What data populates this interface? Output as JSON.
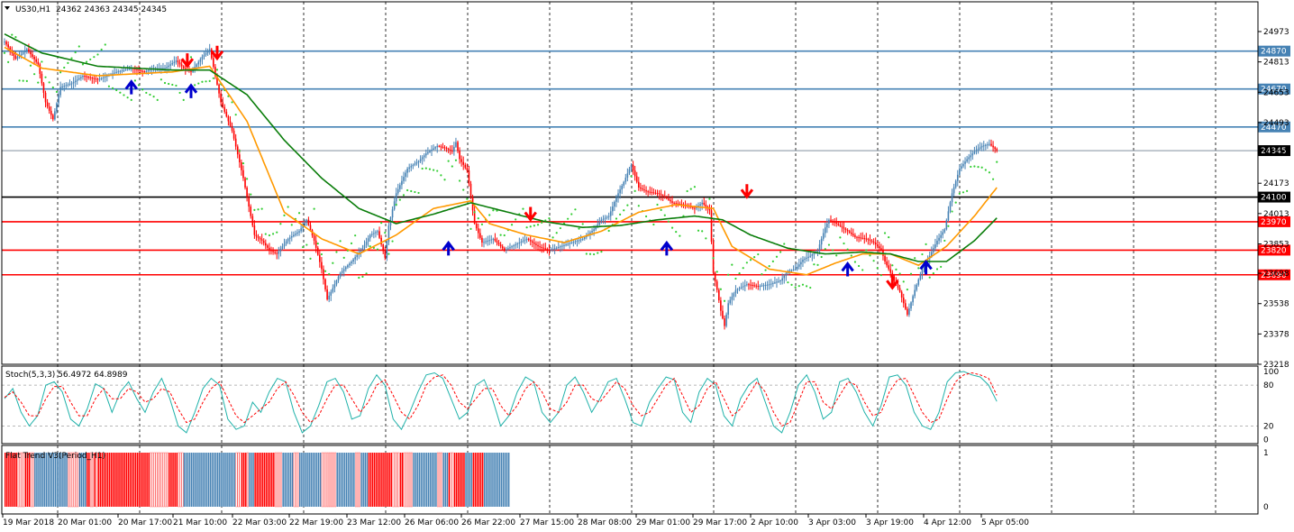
{
  "chart_data": {
    "type": "candlestick",
    "header": {
      "symbol": "US30,H1",
      "ohlc": "24362 24363 24345 24345",
      "menu_icon": "triangle-down-icon"
    },
    "y_range": [
      23218,
      25130
    ],
    "y_ticks": [
      24973,
      24813,
      24653,
      24493,
      24333,
      24173,
      24013,
      23853,
      23698,
      23538,
      23378,
      23218
    ],
    "x_ticks": [
      "19 Mar 2018",
      "20 Mar 01:00",
      "20 Mar 17:00",
      "21 Mar 10:00",
      "22 Mar 03:00",
      "22 Mar 19:00",
      "23 Mar 12:00",
      "26 Mar 06:00",
      "26 Mar 22:00",
      "27 Mar 15:00",
      "28 Mar 08:00",
      "29 Mar 01:00",
      "29 Mar 17:00",
      "2 Apr 10:00",
      "3 Apr 03:00",
      "3 Apr 19:00",
      "4 Apr 12:00",
      "5 Apr 05:00"
    ],
    "current_price": {
      "value": 24345,
      "label": "24345"
    },
    "levels": [
      {
        "value": 24870,
        "label": "24870",
        "color": "#4682b4"
      },
      {
        "value": 24670,
        "label": "24670",
        "color": "#4682b4"
      },
      {
        "value": 24470,
        "label": "24470",
        "color": "#4682b4"
      },
      {
        "value": 24100,
        "label": "24100",
        "color": "#000000"
      },
      {
        "value": 23970,
        "label": "23970",
        "color": "#ff0000"
      },
      {
        "value": 23820,
        "label": "23820",
        "color": "#ff0000"
      },
      {
        "value": 23690,
        "label": "23690",
        "color": "#ff0000"
      }
    ],
    "price_path": {
      "points": [
        [
          0,
          24920
        ],
        [
          6,
          24830
        ],
        [
          12,
          24880
        ],
        [
          18,
          24800
        ],
        [
          22,
          24600
        ],
        [
          26,
          24510
        ],
        [
          30,
          24680
        ],
        [
          36,
          24700
        ],
        [
          42,
          24740
        ],
        [
          50,
          24720
        ],
        [
          60,
          24760
        ],
        [
          68,
          24780
        ],
        [
          75,
          24760
        ],
        [
          80,
          24780
        ],
        [
          86,
          24780
        ],
        [
          92,
          24820
        ],
        [
          96,
          24780
        ],
        [
          100,
          24760
        ],
        [
          106,
          24840
        ],
        [
          110,
          24880
        ],
        [
          116,
          24600
        ],
        [
          122,
          24450
        ],
        [
          128,
          24200
        ],
        [
          132,
          24000
        ],
        [
          134,
          23900
        ],
        [
          138,
          23870
        ],
        [
          142,
          23820
        ],
        [
          146,
          23800
        ],
        [
          152,
          23880
        ],
        [
          158,
          23920
        ],
        [
          162,
          23980
        ],
        [
          166,
          23870
        ],
        [
          170,
          23720
        ],
        [
          173,
          23560
        ],
        [
          176,
          23620
        ],
        [
          180,
          23700
        ],
        [
          186,
          23760
        ],
        [
          192,
          23830
        ],
        [
          196,
          23900
        ],
        [
          200,
          23920
        ],
        [
          204,
          23780
        ],
        [
          206,
          23950
        ],
        [
          210,
          24120
        ],
        [
          216,
          24250
        ],
        [
          222,
          24290
        ],
        [
          226,
          24330
        ],
        [
          232,
          24370
        ],
        [
          236,
          24360
        ],
        [
          240,
          24340
        ],
        [
          242,
          24390
        ],
        [
          244,
          24300
        ],
        [
          248,
          24240
        ],
        [
          252,
          23960
        ],
        [
          256,
          23860
        ],
        [
          262,
          23880
        ],
        [
          268,
          23820
        ],
        [
          274,
          23850
        ],
        [
          280,
          23880
        ],
        [
          286,
          23840
        ],
        [
          292,
          23820
        ],
        [
          298,
          23840
        ],
        [
          304,
          23860
        ],
        [
          310,
          23880
        ],
        [
          316,
          23930
        ],
        [
          320,
          23980
        ],
        [
          324,
          24000
        ],
        [
          328,
          24100
        ],
        [
          332,
          24180
        ],
        [
          336,
          24270
        ],
        [
          340,
          24150
        ],
        [
          344,
          24130
        ],
        [
          350,
          24120
        ],
        [
          354,
          24100
        ],
        [
          358,
          24070
        ],
        [
          364,
          24060
        ],
        [
          370,
          24040
        ],
        [
          374,
          24070
        ],
        [
          378,
          24030
        ],
        [
          380,
          23700
        ],
        [
          382,
          23610
        ],
        [
          384,
          23500
        ],
        [
          386,
          23420
        ],
        [
          388,
          23540
        ],
        [
          392,
          23610
        ],
        [
          398,
          23640
        ],
        [
          404,
          23630
        ],
        [
          410,
          23640
        ],
        [
          416,
          23660
        ],
        [
          420,
          23710
        ],
        [
          424,
          23720
        ],
        [
          428,
          23770
        ],
        [
          432,
          23790
        ],
        [
          436,
          23820
        ],
        [
          440,
          23940
        ],
        [
          442,
          23980
        ],
        [
          446,
          23960
        ],
        [
          452,
          23920
        ],
        [
          456,
          23890
        ],
        [
          462,
          23880
        ],
        [
          466,
          23860
        ],
        [
          470,
          23820
        ],
        [
          472,
          23760
        ],
        [
          476,
          23680
        ],
        [
          480,
          23600
        ],
        [
          484,
          23480
        ],
        [
          488,
          23610
        ],
        [
          492,
          23720
        ],
        [
          496,
          23790
        ],
        [
          500,
          23870
        ],
        [
          504,
          23930
        ],
        [
          508,
          24120
        ],
        [
          512,
          24250
        ],
        [
          516,
          24300
        ],
        [
          520,
          24340
        ],
        [
          524,
          24370
        ],
        [
          528,
          24380
        ],
        [
          532,
          24345
        ]
      ]
    },
    "moving_averages": [
      {
        "color": "#ff9900",
        "points": [
          [
            0,
            24890
          ],
          [
            20,
            24780
          ],
          [
            50,
            24740
          ],
          [
            90,
            24760
          ],
          [
            110,
            24790
          ],
          [
            130,
            24500
          ],
          [
            150,
            24020
          ],
          [
            170,
            23880
          ],
          [
            190,
            23800
          ],
          [
            210,
            23900
          ],
          [
            230,
            24040
          ],
          [
            250,
            24080
          ],
          [
            260,
            23960
          ],
          [
            280,
            23900
          ],
          [
            300,
            23860
          ],
          [
            320,
            23920
          ],
          [
            340,
            24020
          ],
          [
            360,
            24060
          ],
          [
            380,
            24040
          ],
          [
            390,
            23840
          ],
          [
            410,
            23720
          ],
          [
            430,
            23690
          ],
          [
            445,
            23750
          ],
          [
            460,
            23800
          ],
          [
            475,
            23800
          ],
          [
            490,
            23740
          ],
          [
            505,
            23840
          ],
          [
            520,
            24000
          ],
          [
            532,
            24150
          ]
        ]
      },
      {
        "color": "#0a7d0a",
        "points": [
          [
            0,
            24960
          ],
          [
            20,
            24860
          ],
          [
            50,
            24790
          ],
          [
            90,
            24770
          ],
          [
            110,
            24770
          ],
          [
            130,
            24640
          ],
          [
            150,
            24400
          ],
          [
            170,
            24200
          ],
          [
            190,
            24040
          ],
          [
            210,
            23960
          ],
          [
            230,
            24010
          ],
          [
            250,
            24070
          ],
          [
            270,
            24020
          ],
          [
            290,
            23970
          ],
          [
            310,
            23940
          ],
          [
            330,
            23950
          ],
          [
            350,
            23980
          ],
          [
            370,
            24000
          ],
          [
            385,
            23980
          ],
          [
            400,
            23900
          ],
          [
            420,
            23830
          ],
          [
            440,
            23800
          ],
          [
            460,
            23810
          ],
          [
            475,
            23800
          ],
          [
            490,
            23760
          ],
          [
            505,
            23760
          ],
          [
            520,
            23870
          ],
          [
            532,
            23990
          ]
        ]
      }
    ],
    "signals": [
      {
        "x": 68,
        "value": 24680,
        "dir": "up"
      },
      {
        "x": 100,
        "value": 24660,
        "dir": "up"
      },
      {
        "x": 98,
        "value": 24820,
        "dir": "down"
      },
      {
        "x": 114,
        "value": 24860,
        "dir": "down"
      },
      {
        "x": 238,
        "value": 23830,
        "dir": "up"
      },
      {
        "x": 282,
        "value": 24010,
        "dir": "down"
      },
      {
        "x": 355,
        "value": 23830,
        "dir": "up"
      },
      {
        "x": 398,
        "value": 24130,
        "dir": "down"
      },
      {
        "x": 452,
        "value": 23720,
        "dir": "up"
      },
      {
        "x": 476,
        "value": 23650,
        "dir": "down"
      },
      {
        "x": 494,
        "value": 23730,
        "dir": "up"
      }
    ],
    "stochastic": {
      "label": "Stoch(5,3,3) 56.4972 64.8989",
      "k_color": "#20b2aa",
      "d_color": "#ff0000",
      "y_range": [
        -6,
        108
      ],
      "levels": [
        80,
        20
      ],
      "ticks": [
        "100",
        "80",
        "20",
        "0"
      ],
      "k_values": [
        60,
        75,
        40,
        20,
        35,
        80,
        85,
        70,
        30,
        20,
        45,
        82,
        75,
        40,
        70,
        85,
        60,
        40,
        70,
        90,
        60,
        20,
        10,
        40,
        75,
        90,
        80,
        30,
        15,
        20,
        55,
        40,
        70,
        90,
        85,
        40,
        10,
        20,
        50,
        85,
        90,
        70,
        30,
        35,
        75,
        95,
        80,
        30,
        15,
        40,
        70,
        95,
        98,
        90,
        60,
        30,
        40,
        80,
        88,
        60,
        20,
        35,
        70,
        92,
        85,
        40,
        25,
        40,
        80,
        92,
        70,
        40,
        60,
        85,
        90,
        60,
        25,
        20,
        55,
        75,
        92,
        88,
        40,
        25,
        70,
        90,
        80,
        35,
        20,
        60,
        80,
        90,
        55,
        20,
        10,
        40,
        80,
        95,
        70,
        30,
        40,
        85,
        90,
        70,
        40,
        20,
        50,
        92,
        95,
        80,
        40,
        20,
        15,
        40,
        85,
        98,
        100,
        95,
        92,
        80,
        56
      ],
      "d_values": [
        62,
        70,
        55,
        35,
        35,
        60,
        78,
        78,
        55,
        35,
        35,
        60,
        75,
        60,
        60,
        75,
        70,
        55,
        60,
        75,
        70,
        45,
        25,
        30,
        55,
        75,
        85,
        60,
        35,
        25,
        35,
        45,
        55,
        75,
        85,
        65,
        40,
        25,
        35,
        60,
        80,
        80,
        60,
        40,
        55,
        80,
        88,
        65,
        40,
        30,
        50,
        80,
        92,
        95,
        80,
        55,
        45,
        60,
        75,
        75,
        50,
        35,
        50,
        75,
        85,
        70,
        45,
        40,
        55,
        80,
        80,
        60,
        55,
        70,
        85,
        75,
        50,
        35,
        40,
        60,
        80,
        90,
        65,
        40,
        50,
        75,
        85,
        60,
        35,
        45,
        65,
        85,
        70,
        40,
        20,
        25,
        55,
        85,
        85,
        55,
        45,
        65,
        85,
        80,
        55,
        35,
        40,
        70,
        88,
        90,
        65,
        40,
        25,
        30,
        60,
        85,
        95,
        98,
        95,
        90,
        65
      ]
    },
    "flat_trend": {
      "label": "Flat Trend V3(Period_H1)",
      "ticks": [
        "1",
        "0"
      ],
      "legend": {
        "-1": "#ff0000",
        "0": "#ffffff",
        "1": "#4682b4"
      },
      "segments": [
        {
          "state": -1,
          "count": 7
        },
        {
          "state": 0,
          "count": 4
        },
        {
          "state": -1,
          "count": 3
        },
        {
          "state": 0,
          "count": 2
        },
        {
          "state": 1,
          "count": 18
        },
        {
          "state": 0,
          "count": 6
        },
        {
          "state": 1,
          "count": 4
        },
        {
          "state": -1,
          "count": 2
        },
        {
          "state": 0,
          "count": 2
        },
        {
          "state": -1,
          "count": 1
        },
        {
          "state": 0,
          "count": 1
        },
        {
          "state": -1,
          "count": 28
        },
        {
          "state": 0,
          "count": 10
        },
        {
          "state": -1,
          "count": 5
        },
        {
          "state": 0,
          "count": 3
        },
        {
          "state": 1,
          "count": 28
        },
        {
          "state": 0,
          "count": 3
        },
        {
          "state": -1,
          "count": 3
        },
        {
          "state": 0,
          "count": 1
        },
        {
          "state": 1,
          "count": 3
        },
        {
          "state": -1,
          "count": 11
        },
        {
          "state": 0,
          "count": 4
        },
        {
          "state": 1,
          "count": 6
        },
        {
          "state": 0,
          "count": 3
        },
        {
          "state": 1,
          "count": 12
        },
        {
          "state": 0,
          "count": 8
        },
        {
          "state": 1,
          "count": 10
        },
        {
          "state": 0,
          "count": 3
        },
        {
          "state": 1,
          "count": 4
        },
        {
          "state": -1,
          "count": 13
        },
        {
          "state": 0,
          "count": 4
        },
        {
          "state": -1,
          "count": 2
        },
        {
          "state": 0,
          "count": 5
        },
        {
          "state": 1,
          "count": 13
        },
        {
          "state": 0,
          "count": 3
        },
        {
          "state": 1,
          "count": 3
        },
        {
          "state": -1,
          "count": 1
        },
        {
          "state": 0,
          "count": 2
        },
        {
          "state": -1,
          "count": 6
        },
        {
          "state": 1,
          "count": 4
        },
        {
          "state": -1,
          "count": 6
        },
        {
          "state": 1,
          "count": 14
        }
      ]
    },
    "colors": {
      "bull_candle": "#4682b4",
      "bear_candle": "#ff0000",
      "sar_dots": "#32cd32",
      "grid": "#000000",
      "current_price_line": "#708090"
    }
  }
}
